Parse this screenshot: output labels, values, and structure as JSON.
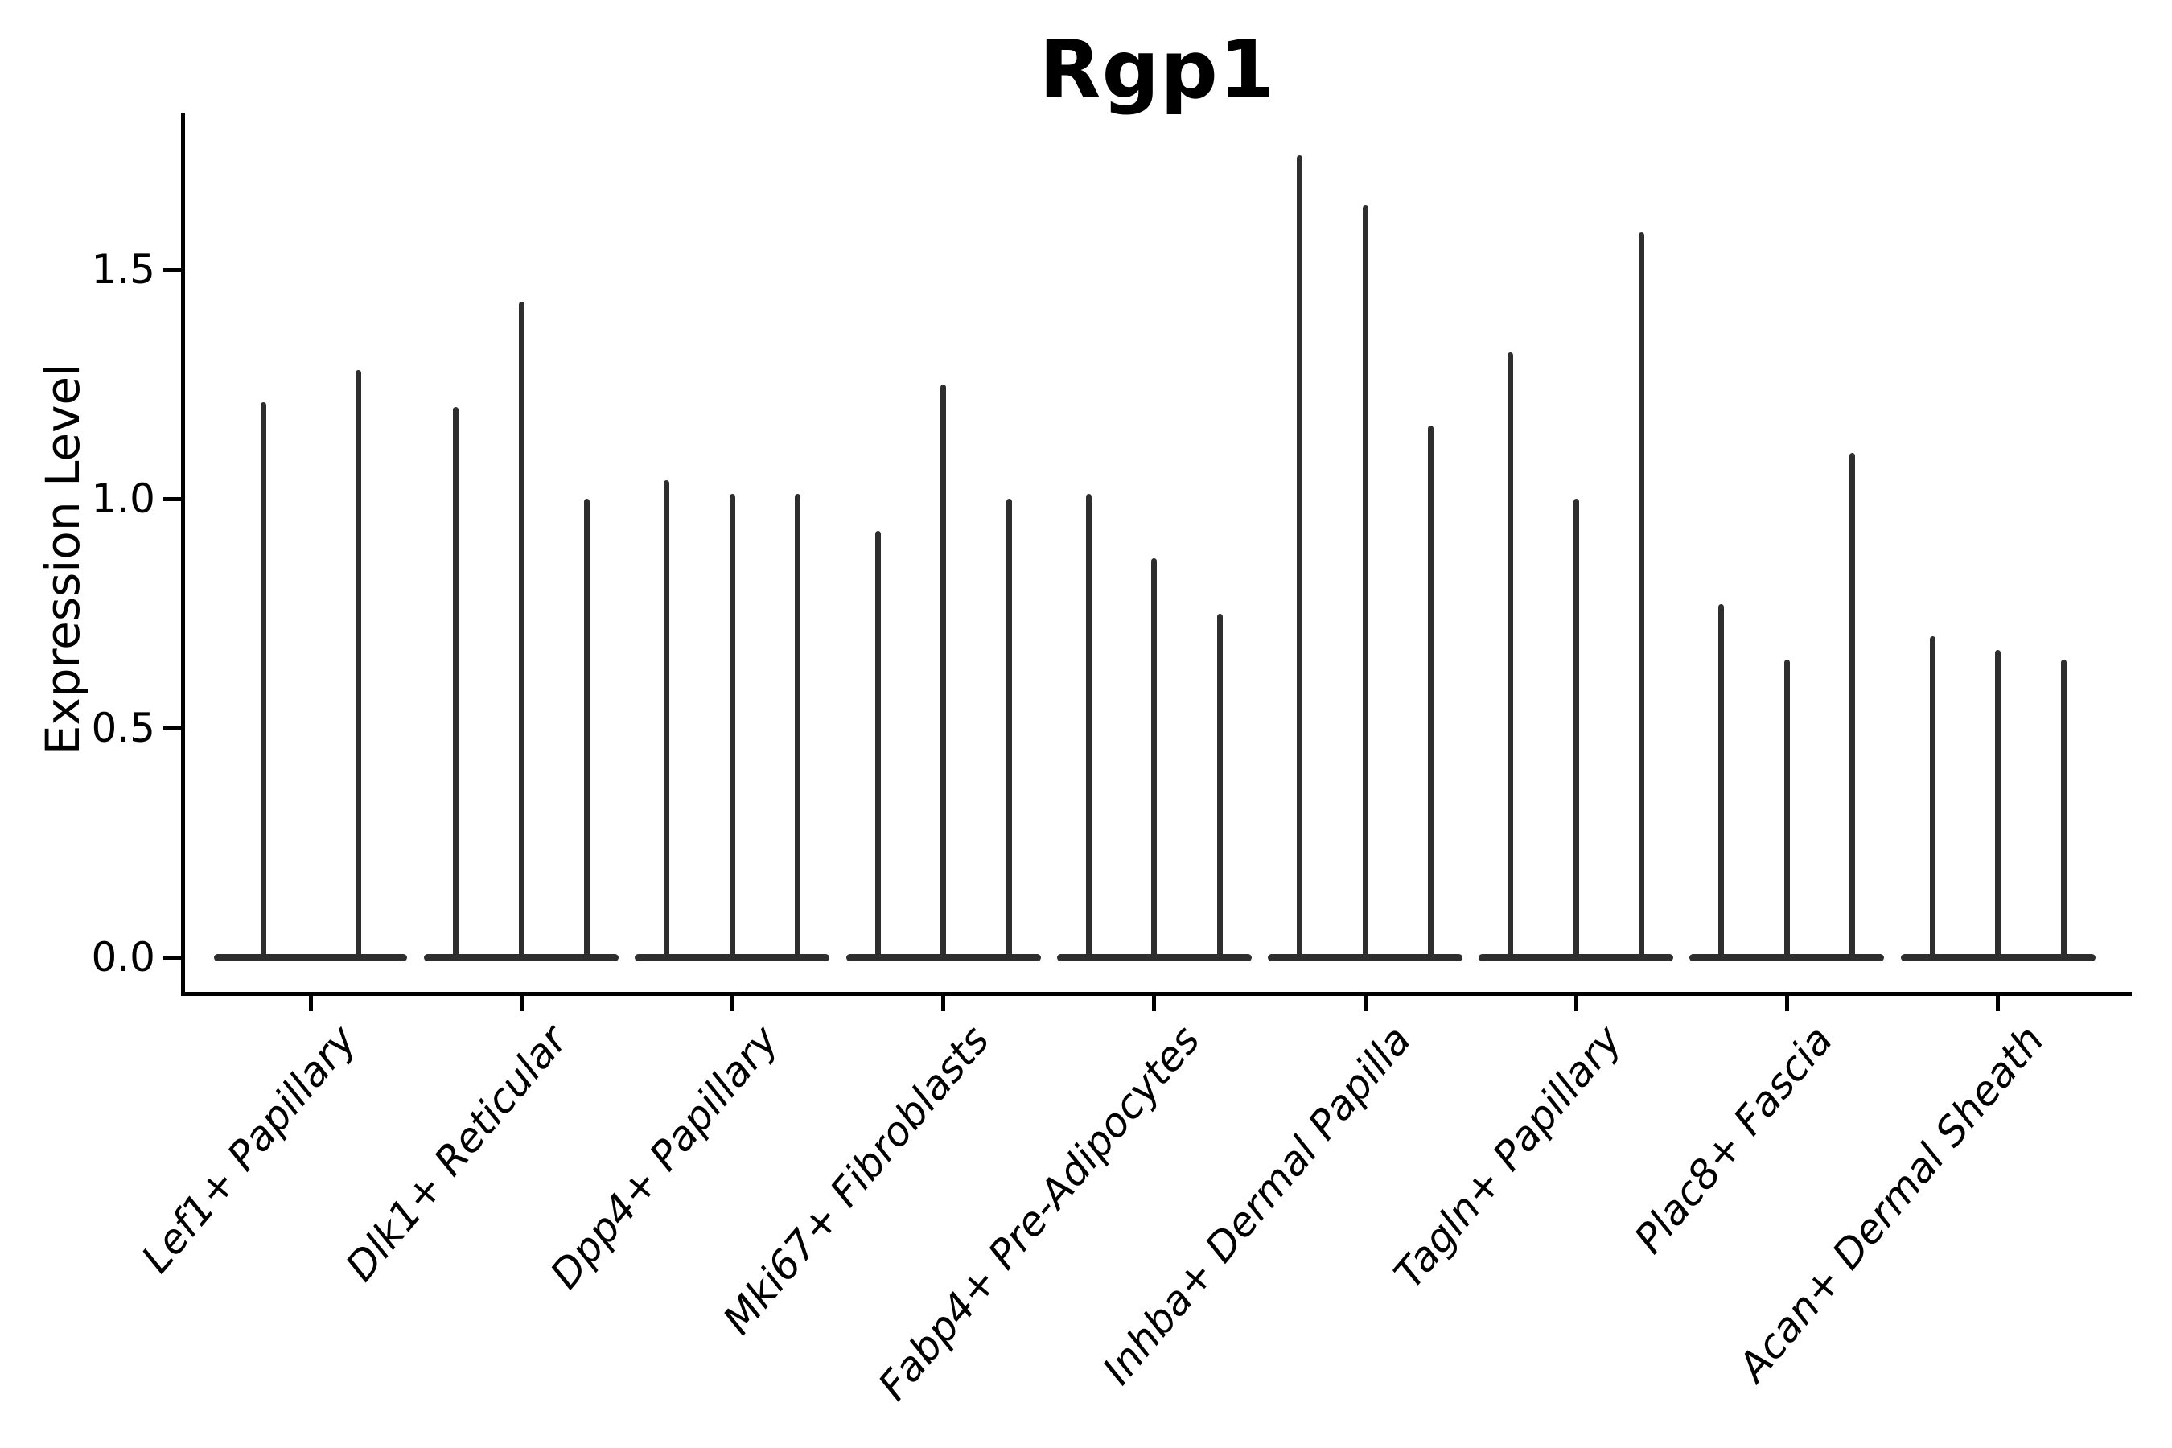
{
  "title": "Rgp1",
  "ylabel": "Expression Level",
  "chart_data": {
    "type": "violin",
    "title": "Rgp1",
    "xlabel": "",
    "ylabel": "Expression Level",
    "ylim": [
      0,
      1.84
    ],
    "yticks": [
      0.0,
      0.5,
      1.0,
      1.5
    ],
    "ytick_labels": [
      "0.0",
      "0.5",
      "1.0",
      "1.5"
    ],
    "grid": false,
    "legend": null,
    "categories": [
      "Lef1+ Papillary",
      "Dlk1+ Reticular",
      "Dpp4+ Papillary",
      "Mki67+ Fibroblasts",
      "Fabp4+ Pre-Adipocytes",
      "Inhba+ Dermal Papilla",
      "Tagln+ Papillary",
      "Plac8+ Fascia",
      "Acan+ Dermal Sheath"
    ],
    "groups": [
      {
        "category": "Lef1+ Papillary",
        "violin_maxima": [
          1.21,
          1.28
        ]
      },
      {
        "category": "Dlk1+ Reticular",
        "violin_maxima": [
          1.2,
          1.43,
          1.0
        ]
      },
      {
        "category": "Dpp4+ Papillary",
        "violin_maxima": [
          1.04,
          1.01,
          1.01
        ]
      },
      {
        "category": "Mki67+ Fibroblasts",
        "violin_maxima": [
          0.93,
          1.25,
          1.0
        ]
      },
      {
        "category": "Fabp4+ Pre-Adipocytes",
        "violin_maxima": [
          1.01,
          0.87,
          0.75
        ]
      },
      {
        "category": "Inhba+ Dermal Papilla",
        "violin_maxima": [
          1.75,
          1.64,
          1.16
        ]
      },
      {
        "category": "Tagln+ Papillary",
        "violin_maxima": [
          1.32,
          1.0,
          1.58
        ]
      },
      {
        "category": "Plac8+ Fascia",
        "violin_maxima": [
          0.77,
          0.65,
          1.1
        ]
      },
      {
        "category": "Acan+ Dermal Sheath",
        "violin_maxima": [
          0.7,
          0.67,
          0.65
        ]
      }
    ],
    "description": "Violin plot of Rgp1 expression; each violin has its density mass at 0 with a thin spike up to its maximum value.",
    "colors": {
      "violin": "#2e2e2e",
      "axis": "#000000",
      "background": "#ffffff"
    }
  }
}
